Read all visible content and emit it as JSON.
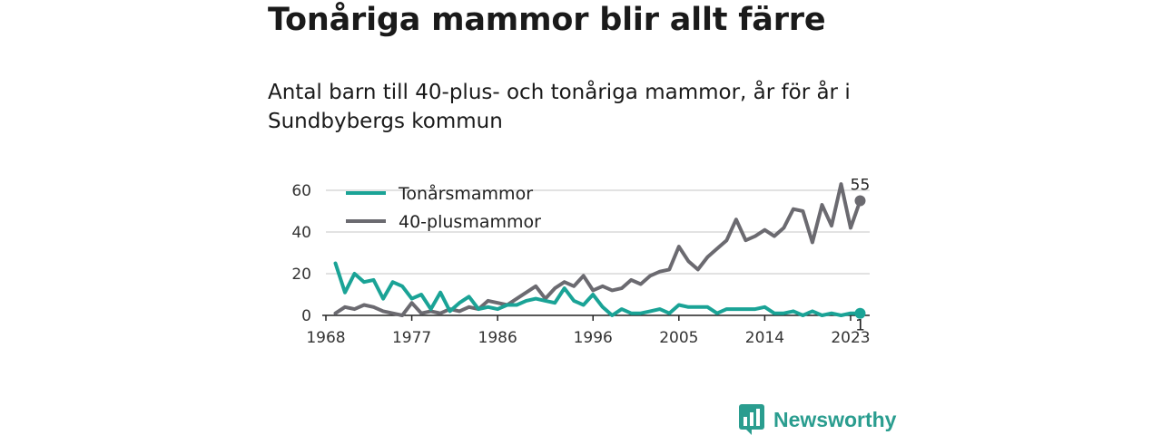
{
  "header": {
    "title": "Tonåriga mammor blir allt färre",
    "subtitle": "Antal barn till 40-plus- och tonåriga mammor, år för år i Sundbybergs kommun"
  },
  "brand": {
    "name": "Newsworthy"
  },
  "chart_data": {
    "type": "line",
    "title": "",
    "xlabel": "",
    "ylabel": "",
    "xlim": [
      1968,
      2025
    ],
    "ylim": [
      0,
      60
    ],
    "x_ticks": [
      1968,
      1977,
      1986,
      1996,
      2005,
      2014,
      2023
    ],
    "y_ticks": [
      0,
      20,
      40,
      60
    ],
    "grid": "horizontal",
    "legend": "top-left",
    "x": [
      1969,
      1970,
      1971,
      1972,
      1973,
      1974,
      1975,
      1976,
      1977,
      1978,
      1979,
      1980,
      1981,
      1982,
      1983,
      1984,
      1985,
      1986,
      1987,
      1988,
      1989,
      1990,
      1991,
      1992,
      1993,
      1994,
      1995,
      1996,
      1997,
      1998,
      1999,
      2000,
      2001,
      2002,
      2003,
      2004,
      2005,
      2006,
      2007,
      2008,
      2009,
      2010,
      2011,
      2012,
      2013,
      2014,
      2015,
      2016,
      2017,
      2018,
      2019,
      2020,
      2021,
      2022,
      2023,
      2024
    ],
    "series": [
      {
        "name": "Tonårsmammor",
        "color": "#1aa396",
        "end_label": "1",
        "values": [
          25,
          11,
          20,
          16,
          17,
          8,
          16,
          14,
          8,
          10,
          3,
          11,
          2,
          6,
          9,
          3,
          4,
          3,
          5,
          5,
          7,
          8,
          7,
          6,
          13,
          7,
          5,
          10,
          4,
          0,
          3,
          1,
          1,
          2,
          3,
          1,
          5,
          4,
          4,
          4,
          1,
          3,
          3,
          3,
          3,
          4,
          1,
          1,
          2,
          0,
          2,
          0,
          1,
          0,
          1,
          1
        ]
      },
      {
        "name": "40-plusmammor",
        "color": "#6b6a70",
        "end_label": "55",
        "values": [
          1,
          4,
          3,
          5,
          4,
          2,
          1,
          0,
          6,
          1,
          2,
          1,
          3,
          2,
          4,
          3,
          7,
          6,
          5,
          8,
          11,
          14,
          8,
          13,
          16,
          14,
          19,
          12,
          14,
          12,
          13,
          17,
          15,
          19,
          21,
          22,
          33,
          26,
          22,
          28,
          32,
          36,
          46,
          36,
          38,
          41,
          38,
          42,
          51,
          50,
          35,
          53,
          43,
          63,
          42,
          55
        ]
      }
    ]
  }
}
